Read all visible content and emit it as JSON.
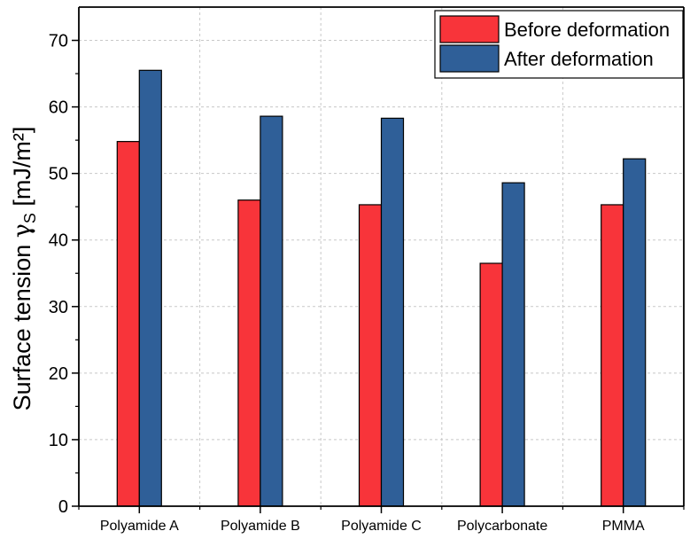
{
  "chart_data": {
    "type": "bar",
    "title": "",
    "xlabel": "",
    "ylabel": "Surface tension γS [mJ/m²]",
    "ylabel_parts": {
      "prefix": "Surface tension ",
      "symbol": "γ",
      "subscript": "S",
      "suffix": " [mJ/m²]"
    },
    "ylim": [
      0,
      75
    ],
    "yticks": [
      "0",
      "10",
      "20",
      "30",
      "40",
      "50",
      "60",
      "70"
    ],
    "categories": [
      "Polyamide A",
      "Polyamide B",
      "Polyamide C",
      "Polycarbonate",
      "PMMA"
    ],
    "series": [
      {
        "name": "Before deformation",
        "color": "#f8343a",
        "values": [
          54.8,
          46.0,
          45.3,
          36.5,
          45.3
        ]
      },
      {
        "name": "After deformation",
        "color": "#2f5f98",
        "values": [
          65.5,
          58.6,
          58.3,
          48.6,
          52.2
        ]
      }
    ],
    "grid": true,
    "legend_position": "top-right"
  }
}
